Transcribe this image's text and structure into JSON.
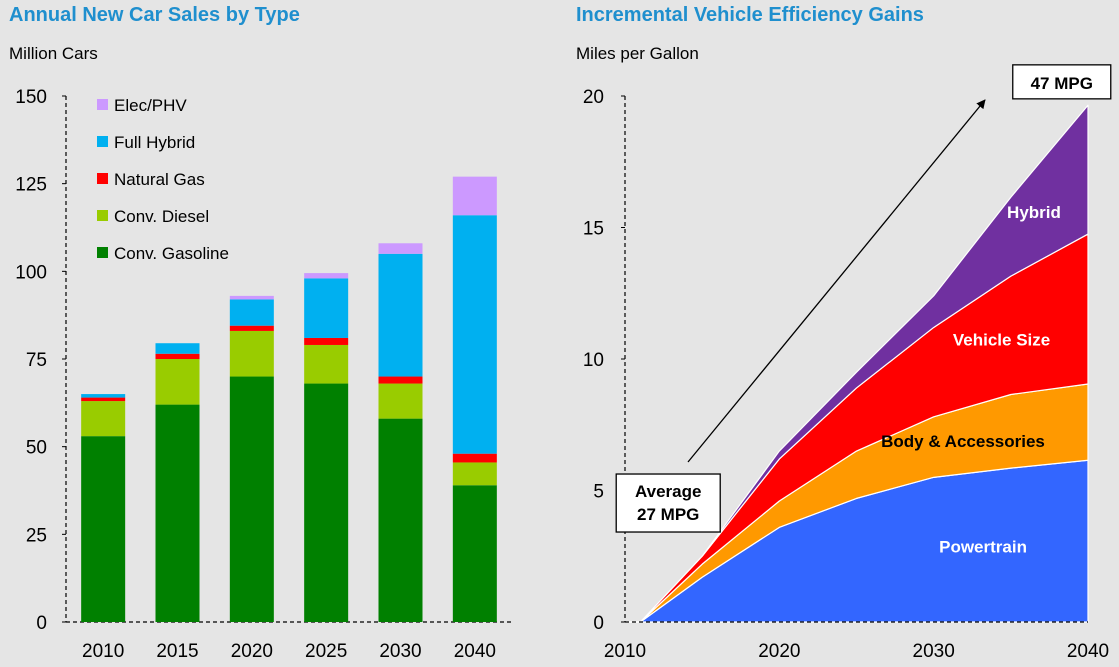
{
  "colors": {
    "background": "#e5e5e5",
    "title": "#1f8fce",
    "gasoline": "#008000",
    "diesel": "#99cc00",
    "natural_gas": "#ff0000",
    "full_hybrid": "#00b0f0",
    "elec_phv": "#cc99ff",
    "powertrain": "#3366ff",
    "body_accessories": "#ff9900",
    "vehicle_size": "#ff0000",
    "hybrid": "#7030a0"
  },
  "chart_data": [
    {
      "type": "bar",
      "stacked": true,
      "title": "Annual New Car Sales by Type",
      "ylabel": "Million Cars",
      "xlabel": "",
      "categories": [
        "2010",
        "2015",
        "2020",
        "2025",
        "2030",
        "2040"
      ],
      "ylim": [
        0,
        150
      ],
      "yticks": [
        "0",
        "25",
        "50",
        "75",
        "100",
        "125",
        "150"
      ],
      "grid": false,
      "legend_position": "top-left",
      "series": [
        {
          "name": "Conv. Gasoline",
          "color": "#008000",
          "values": [
            53,
            62,
            70,
            68,
            58,
            39
          ]
        },
        {
          "name": "Conv. Diesel",
          "color": "#99cc00",
          "values": [
            10,
            13,
            13,
            11,
            10,
            6.5
          ]
        },
        {
          "name": "Natural Gas",
          "color": "#ff0000",
          "values": [
            1,
            1.5,
            1.5,
            2,
            2,
            2.5
          ]
        },
        {
          "name": "Full Hybrid",
          "color": "#00b0f0",
          "values": [
            1,
            3,
            7.5,
            17,
            35,
            68
          ]
        },
        {
          "name": "Elec/PHV",
          "color": "#cc99ff",
          "values": [
            0,
            0,
            1,
            1.5,
            3,
            11
          ]
        }
      ],
      "legend_order": [
        "Elec/PHV",
        "Full Hybrid",
        "Natural Gas",
        "Conv. Diesel",
        "Conv. Gasoline"
      ]
    },
    {
      "type": "area",
      "stacked": true,
      "title": "Incremental Vehicle Efficiency Gains",
      "ylabel": "Miles per Gallon",
      "xlabel": "",
      "x": [
        2010,
        2011,
        2015,
        2020,
        2025,
        2030,
        2035,
        2040
      ],
      "xlim": [
        2010,
        2040
      ],
      "xticks": [
        "2010",
        "2020",
        "2030",
        "2040"
      ],
      "ylim": [
        0,
        20
      ],
      "yticks": [
        "0",
        "5",
        "10",
        "15",
        "20"
      ],
      "grid": false,
      "series": [
        {
          "name": "Powertrain",
          "color": "#3366ff",
          "values": [
            0,
            0,
            1.7,
            3.6,
            4.7,
            5.5,
            5.85,
            6.15
          ]
        },
        {
          "name": "Body & Accessories",
          "color": "#ff9900",
          "values": [
            0,
            0,
            0.5,
            1.0,
            1.8,
            2.3,
            2.8,
            2.9
          ]
        },
        {
          "name": "Vehicle Size",
          "color": "#ff0000",
          "values": [
            0,
            0,
            0.3,
            1.6,
            2.4,
            3.4,
            4.5,
            5.7
          ]
        },
        {
          "name": "Hybrid",
          "color": "#7030a0",
          "values": [
            0,
            0,
            0,
            0.3,
            0.6,
            1.2,
            3.0,
            4.9
          ]
        }
      ],
      "annotations": [
        {
          "text": [
            "Average",
            "27 MPG"
          ],
          "x": 2012.8,
          "y": 4.6
        },
        {
          "text": [
            "47 MPG"
          ],
          "x": 2038.3,
          "y": 20.5
        }
      ]
    }
  ]
}
